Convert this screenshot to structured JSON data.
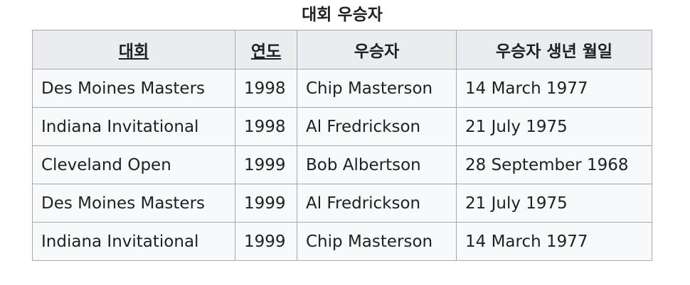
{
  "caption": "대회 우승자",
  "headers": {
    "tournament": "대회",
    "year": "연도",
    "winner": "우승자",
    "birth_date": "우승자 생년 월일"
  },
  "rows": [
    {
      "tournament": "Des Moines Masters",
      "year": "1998",
      "winner": "Chip Masterson",
      "birth_date": "14 March 1977"
    },
    {
      "tournament": "Indiana Invitational",
      "year": "1998",
      "winner": "Al Fredrickson",
      "birth_date": "21 July 1975"
    },
    {
      "tournament": "Cleveland Open",
      "year": "1999",
      "winner": "Bob Albertson",
      "birth_date": "28 September 1968"
    },
    {
      "tournament": "Des Moines Masters",
      "year": "1999",
      "winner": "Al Fredrickson",
      "birth_date": "21 July 1975"
    },
    {
      "tournament": "Indiana Invitational",
      "year": "1999",
      "winner": "Chip Masterson",
      "birth_date": "14 March 1977"
    }
  ]
}
